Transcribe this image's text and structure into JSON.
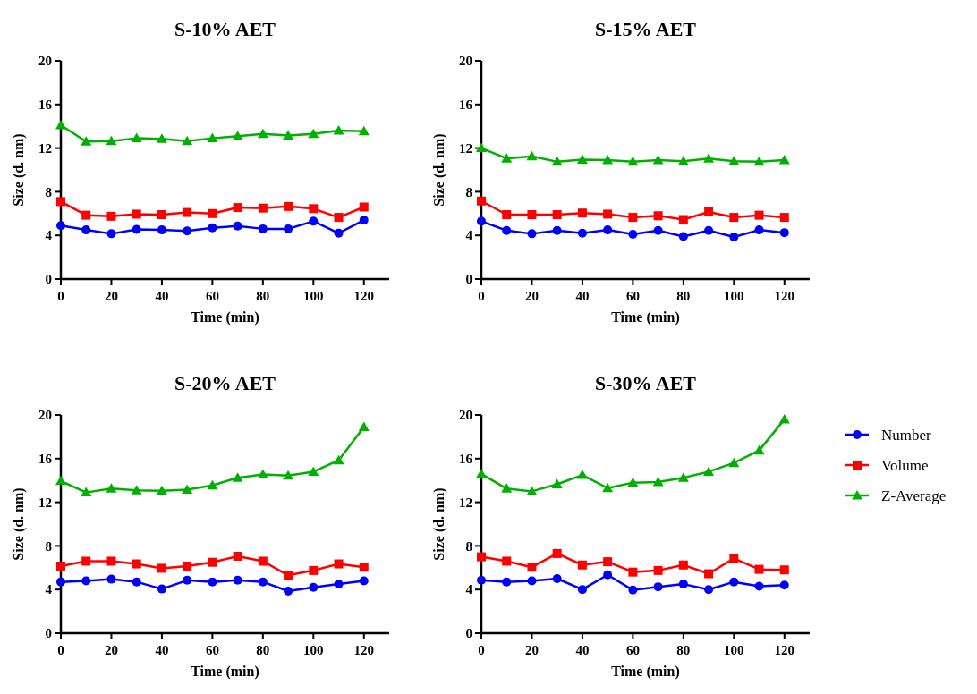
{
  "chart_data": [
    {
      "type": "line",
      "title": "S-10% AET",
      "xlabel": "Time (min)",
      "ylabel": "Size (d. nm)",
      "x": [
        0,
        10,
        20,
        30,
        40,
        50,
        60,
        70,
        80,
        90,
        100,
        110,
        120
      ],
      "xlim": [
        0,
        130
      ],
      "xticks": [
        0,
        20,
        40,
        60,
        80,
        100,
        120
      ],
      "ylim": [
        0,
        20
      ],
      "yticks": [
        0,
        4,
        8,
        12,
        16,
        20
      ],
      "grid": false,
      "legend": false,
      "series": [
        {
          "color": "#0000ff",
          "marker": "circle",
          "values": [
            4.9,
            4.5,
            4.15,
            4.55,
            4.5,
            4.4,
            4.7,
            4.85,
            4.6,
            4.6,
            5.3,
            4.2,
            5.4
          ]
        },
        {
          "color": "#ff0000",
          "marker": "square",
          "values": [
            7.1,
            5.85,
            5.75,
            5.95,
            5.9,
            6.1,
            6.0,
            6.55,
            6.5,
            6.65,
            6.45,
            5.65,
            6.6
          ]
        },
        {
          "color": "#00b000",
          "marker": "triangle",
          "values": [
            14.1,
            12.6,
            12.65,
            12.9,
            12.85,
            12.65,
            12.9,
            13.1,
            13.3,
            13.15,
            13.3,
            13.6,
            13.55
          ]
        }
      ]
    },
    {
      "type": "line",
      "title": "S-15% AET",
      "xlabel": "Time (min)",
      "ylabel": "Size (d. nm)",
      "x": [
        0,
        10,
        20,
        30,
        40,
        50,
        60,
        70,
        80,
        90,
        100,
        110,
        120
      ],
      "xlim": [
        0,
        130
      ],
      "xticks": [
        0,
        20,
        40,
        60,
        80,
        100,
        120
      ],
      "ylim": [
        0,
        20
      ],
      "yticks": [
        0,
        4,
        8,
        12,
        16,
        20
      ],
      "grid": false,
      "legend": false,
      "series": [
        {
          "color": "#0000ff",
          "marker": "circle",
          "values": [
            5.3,
            4.45,
            4.15,
            4.45,
            4.2,
            4.5,
            4.1,
            4.45,
            3.9,
            4.45,
            3.85,
            4.5,
            4.25
          ]
        },
        {
          "color": "#ff0000",
          "marker": "square",
          "values": [
            7.15,
            5.9,
            5.9,
            5.9,
            6.05,
            5.95,
            5.65,
            5.8,
            5.45,
            6.15,
            5.65,
            5.85,
            5.65
          ]
        },
        {
          "color": "#00b000",
          "marker": "triangle",
          "values": [
            12.0,
            11.05,
            11.25,
            10.75,
            10.95,
            10.9,
            10.75,
            10.9,
            10.8,
            11.05,
            10.8,
            10.75,
            10.9
          ]
        }
      ]
    },
    {
      "type": "line",
      "title": "S-20% AET",
      "xlabel": "Time (min)",
      "ylabel": "Size (d. nm)",
      "x": [
        0,
        10,
        20,
        30,
        40,
        50,
        60,
        70,
        80,
        90,
        100,
        110,
        120
      ],
      "xlim": [
        0,
        130
      ],
      "xticks": [
        0,
        20,
        40,
        60,
        80,
        100,
        120
      ],
      "ylim": [
        0,
        20
      ],
      "yticks": [
        0,
        4,
        8,
        12,
        16,
        20
      ],
      "grid": false,
      "legend": false,
      "series": [
        {
          "color": "#0000ff",
          "marker": "circle",
          "values": [
            4.7,
            4.8,
            4.95,
            4.7,
            4.05,
            4.85,
            4.7,
            4.85,
            4.7,
            3.85,
            4.2,
            4.5,
            4.8
          ]
        },
        {
          "color": "#ff0000",
          "marker": "square",
          "values": [
            6.15,
            6.6,
            6.6,
            6.35,
            5.95,
            6.15,
            6.5,
            7.05,
            6.6,
            5.3,
            5.75,
            6.35,
            6.05
          ]
        },
        {
          "color": "#00b000",
          "marker": "triangle",
          "values": [
            13.95,
            12.9,
            13.25,
            13.1,
            13.05,
            13.15,
            13.55,
            14.25,
            14.55,
            14.45,
            14.8,
            15.85,
            18.9
          ]
        }
      ]
    },
    {
      "type": "line",
      "title": "S-30% AET",
      "xlabel": "Time (min)",
      "ylabel": "Size (d. nm)",
      "x": [
        0,
        10,
        20,
        30,
        40,
        50,
        60,
        70,
        80,
        90,
        100,
        110,
        120
      ],
      "xlim": [
        0,
        130
      ],
      "xticks": [
        0,
        20,
        40,
        60,
        80,
        100,
        120
      ],
      "ylim": [
        0,
        20
      ],
      "yticks": [
        0,
        4,
        8,
        12,
        16,
        20
      ],
      "grid": false,
      "legend": "right",
      "series": [
        {
          "name": "Number",
          "color": "#0000ff",
          "marker": "circle",
          "values": [
            4.85,
            4.7,
            4.8,
            5.0,
            4.0,
            5.35,
            3.95,
            4.25,
            4.5,
            4.0,
            4.7,
            4.3,
            4.4
          ]
        },
        {
          "name": "Volume",
          "color": "#ff0000",
          "marker": "square",
          "values": [
            7.0,
            6.6,
            6.05,
            7.3,
            6.25,
            6.55,
            5.6,
            5.75,
            6.25,
            5.45,
            6.85,
            5.85,
            5.8
          ]
        },
        {
          "name": "Z-Average",
          "color": "#00b000",
          "marker": "triangle",
          "values": [
            14.6,
            13.25,
            13.0,
            13.65,
            14.5,
            13.3,
            13.8,
            13.85,
            14.25,
            14.8,
            15.6,
            16.75,
            19.6
          ]
        }
      ]
    }
  ]
}
